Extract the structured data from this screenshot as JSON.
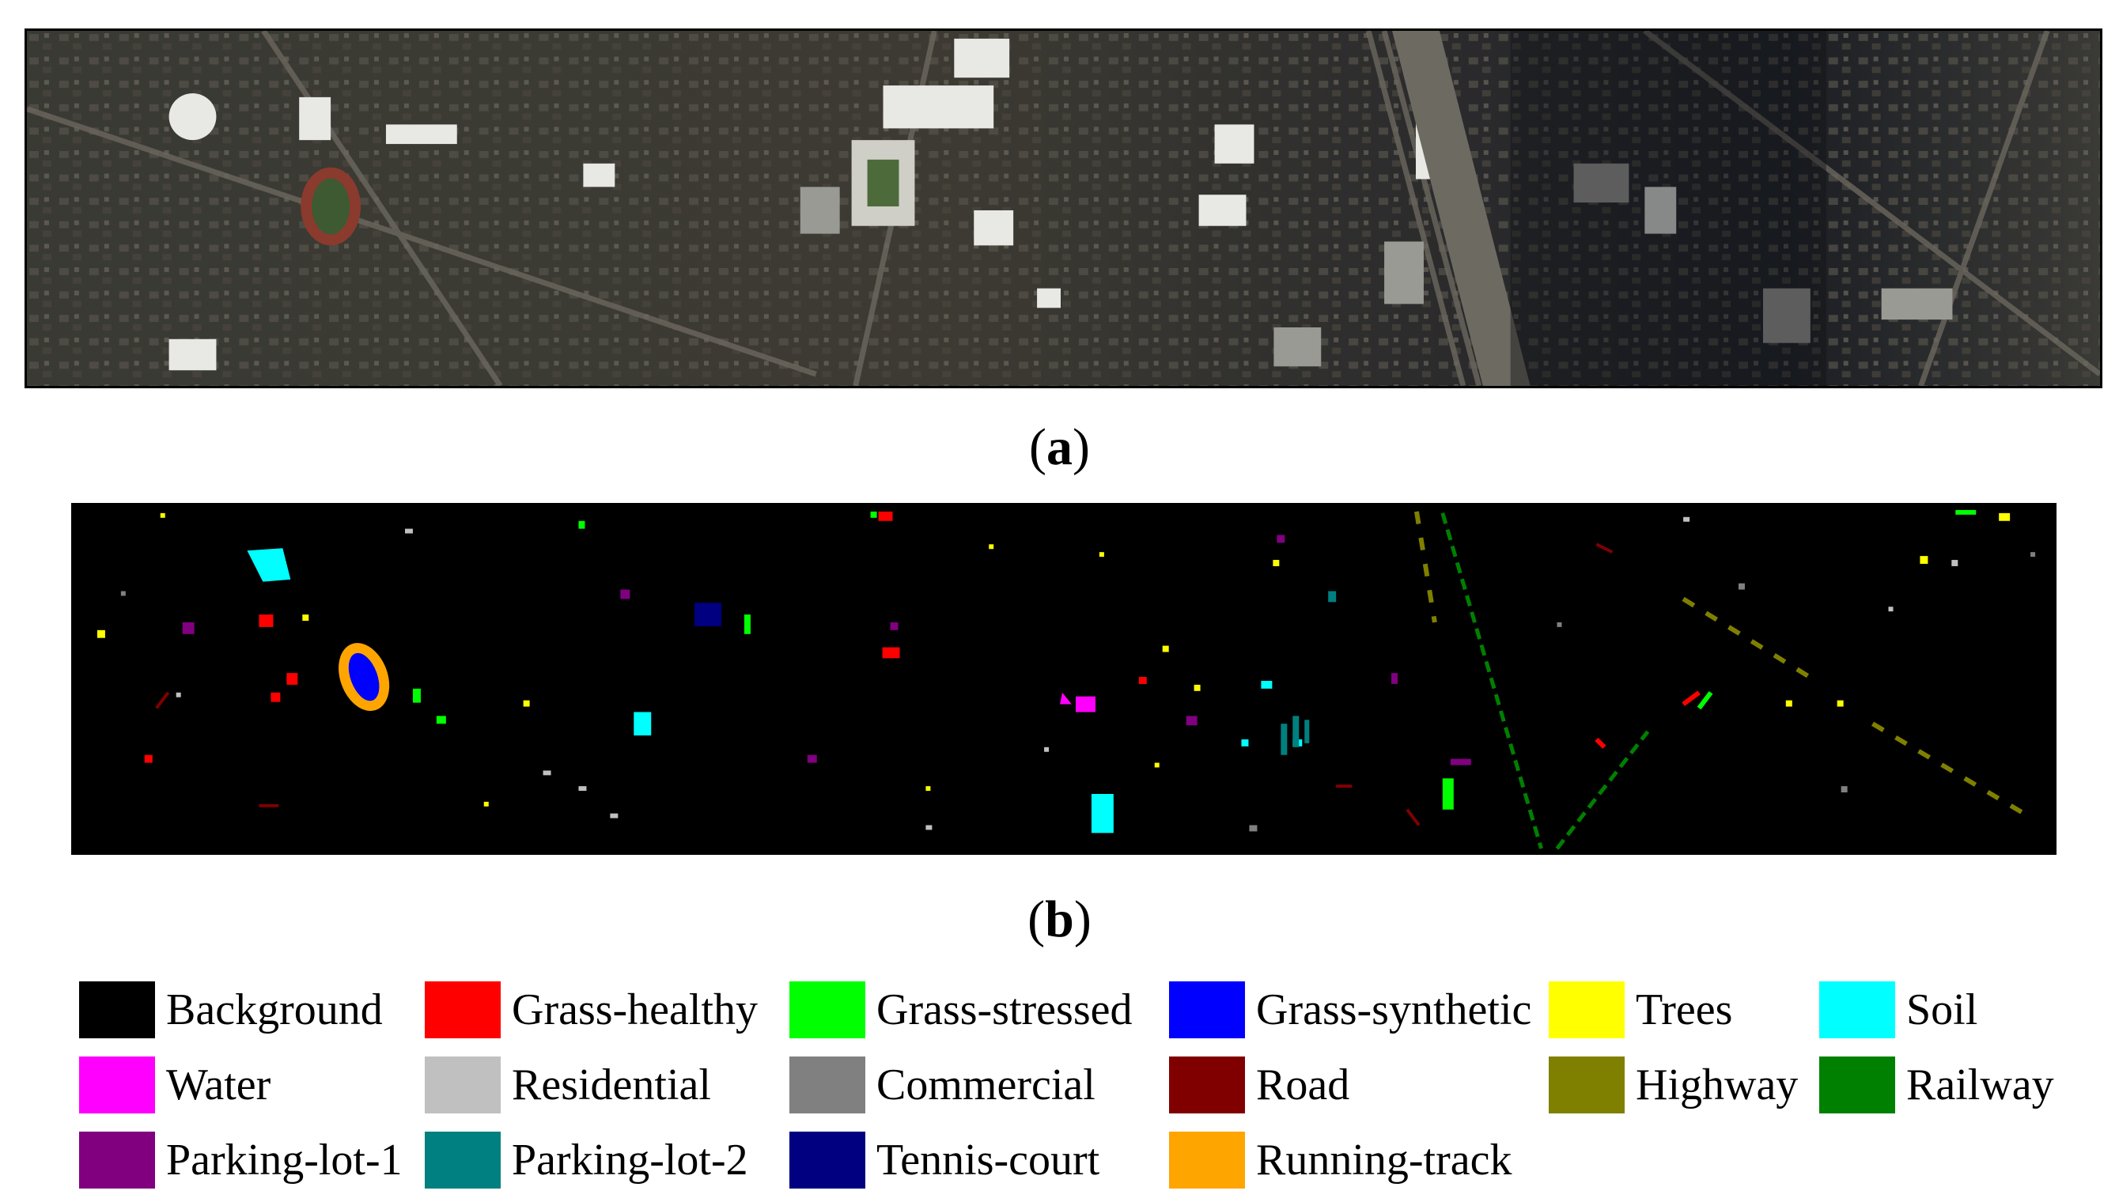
{
  "panels": {
    "a": {
      "caption_open": "(",
      "caption_letter": "a",
      "caption_close": ")"
    },
    "b": {
      "caption_open": "(",
      "caption_letter": "b",
      "caption_close": ")"
    }
  },
  "legend": {
    "items": [
      {
        "label": "Background",
        "color": "#000000"
      },
      {
        "label": "Grass-healthy",
        "color": "#ff0000"
      },
      {
        "label": "Grass-stressed",
        "color": "#00ff00"
      },
      {
        "label": "Grass-synthetic",
        "color": "#0000ff"
      },
      {
        "label": "Trees",
        "color": "#ffff00"
      },
      {
        "label": "Soil",
        "color": "#00ffff"
      },
      {
        "label": "Water",
        "color": "#ff00ff"
      },
      {
        "label": "Residential",
        "color": "#c0c0c0"
      },
      {
        "label": "Commercial",
        "color": "#808080"
      },
      {
        "label": "Road",
        "color": "#800000"
      },
      {
        "label": "Highway",
        "color": "#808000"
      },
      {
        "label": "Railway",
        "color": "#008000"
      },
      {
        "label": "Parking-lot-1",
        "color": "#800080"
      },
      {
        "label": "Parking-lot-2",
        "color": "#008080"
      },
      {
        "label": "Tennis-court",
        "color": "#000080"
      },
      {
        "label": "Running-track",
        "color": "#ffa500"
      }
    ]
  }
}
